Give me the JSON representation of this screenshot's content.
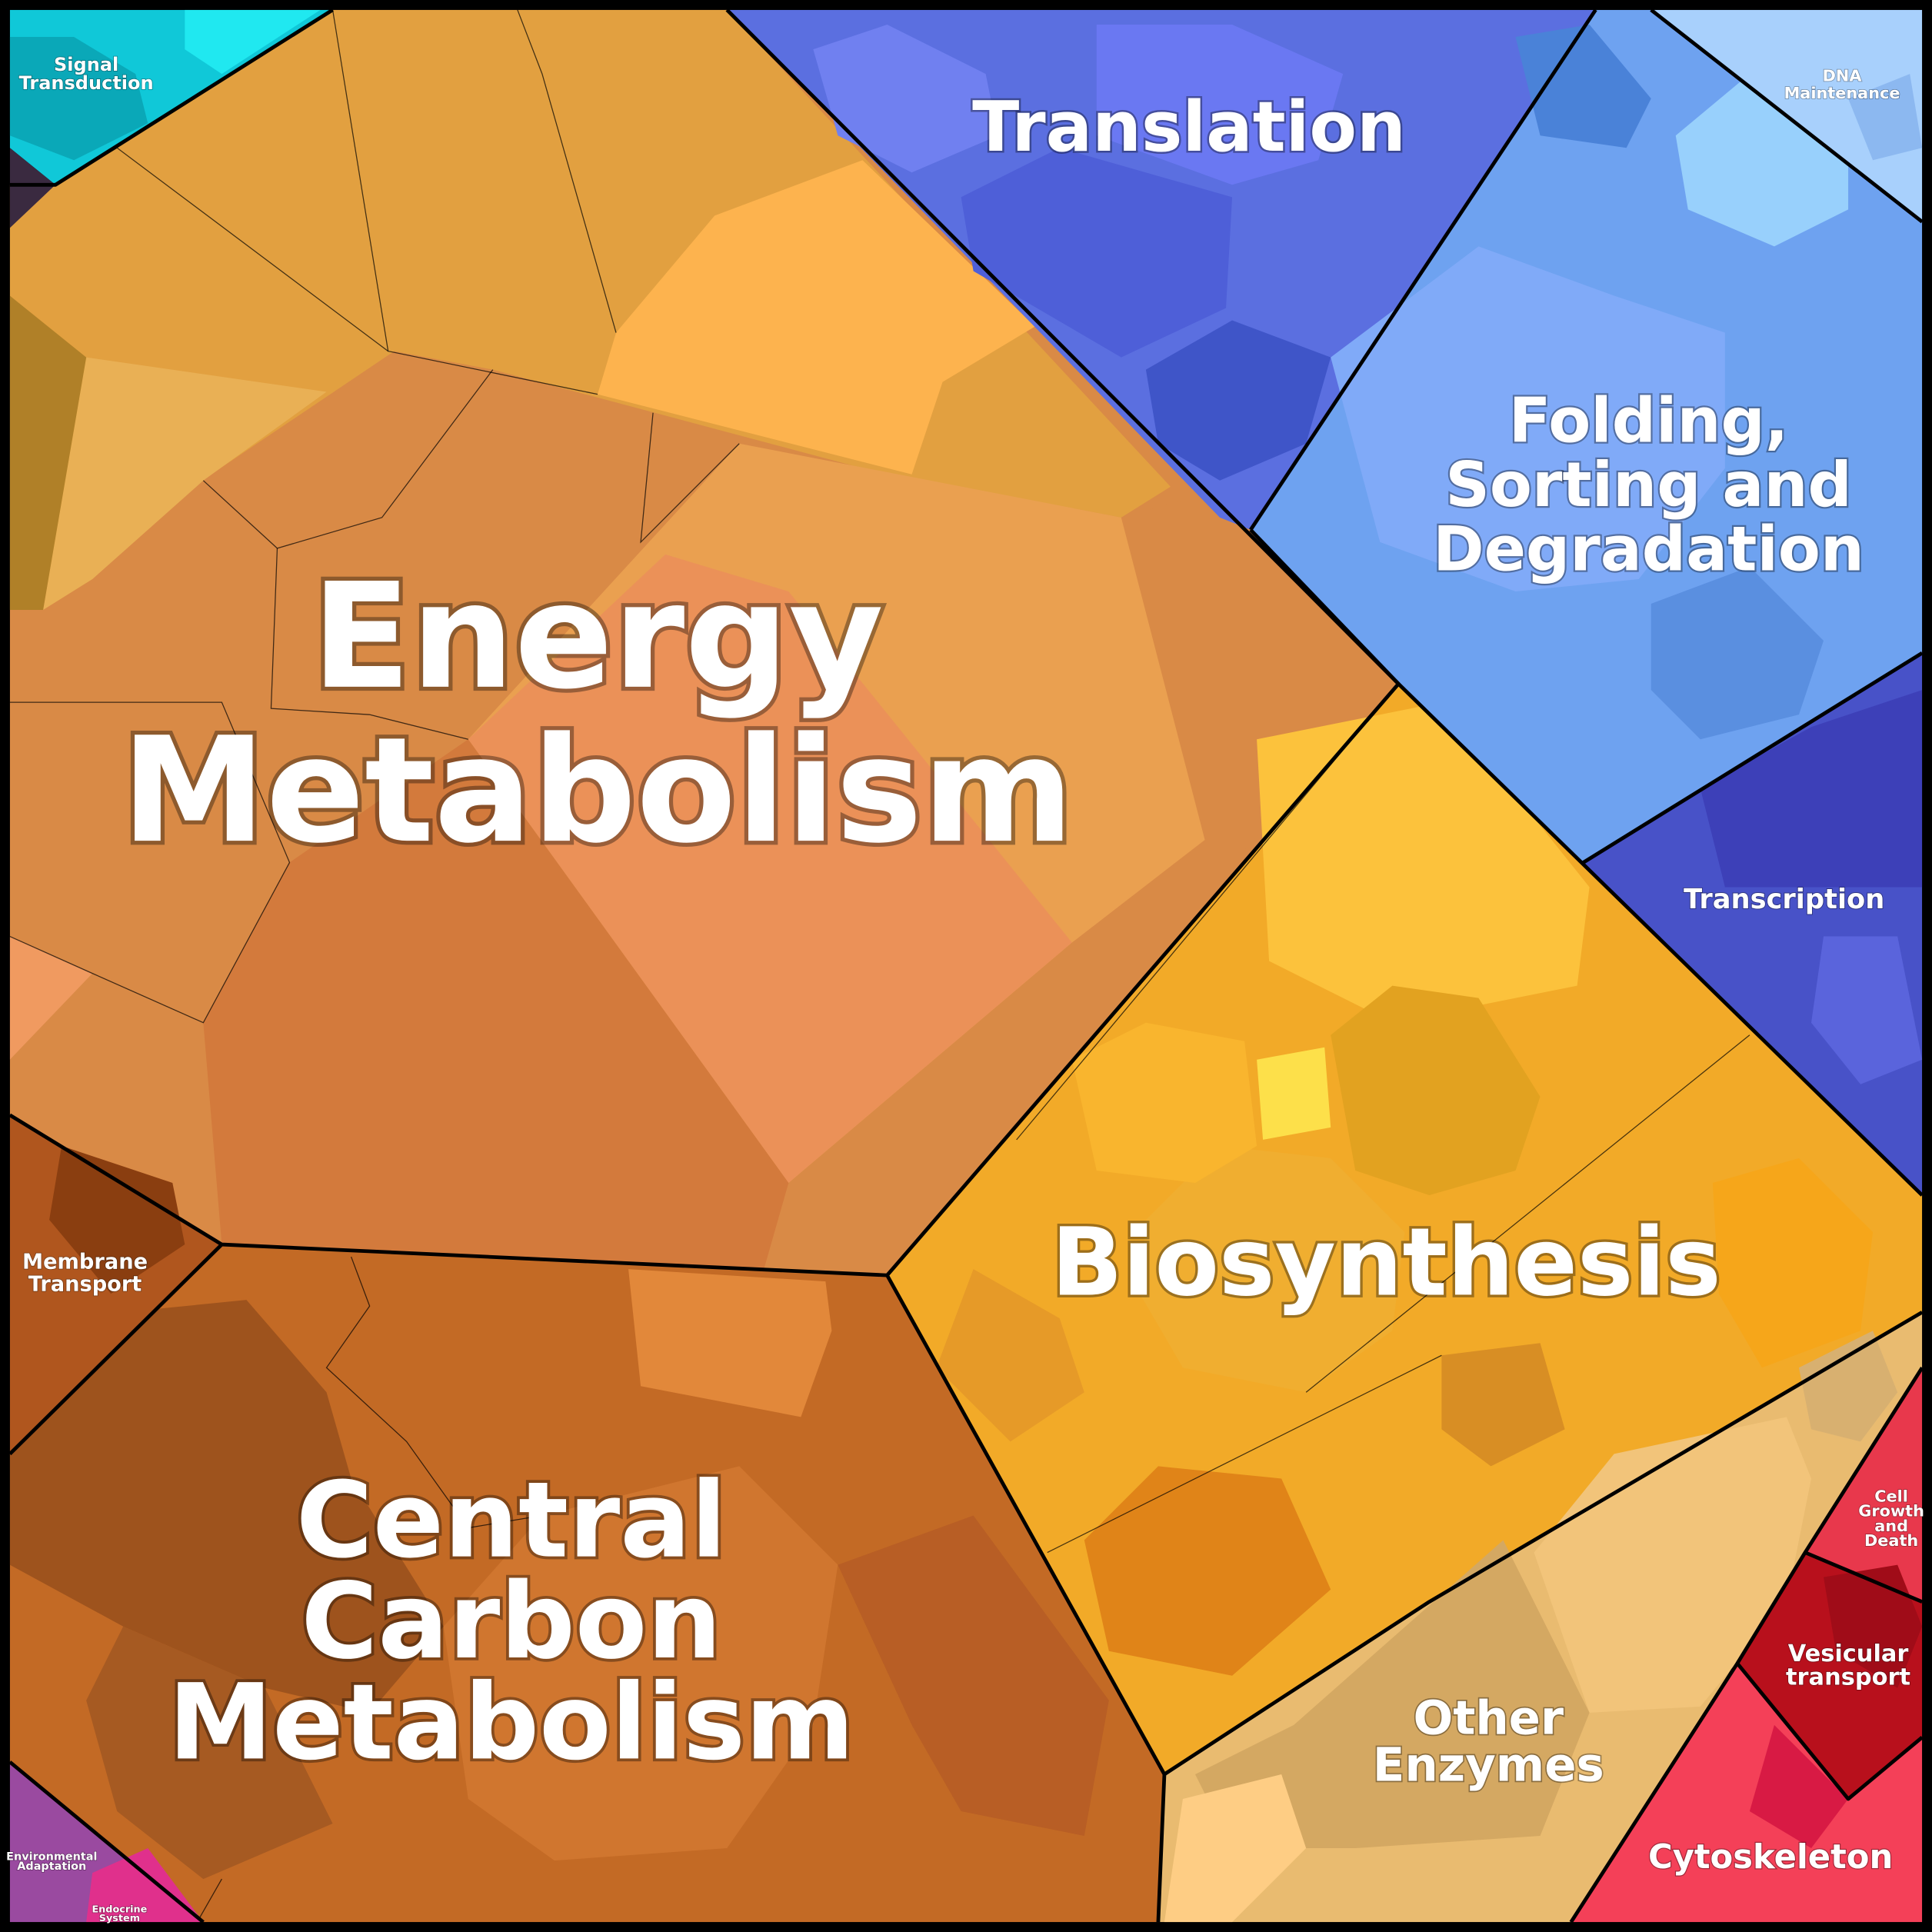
{
  "regions": [
    {
      "label": [
        "Energy",
        "Metabolism"
      ]
    },
    {
      "label": [
        "Central",
        "Carbon",
        "Metabolism"
      ]
    },
    {
      "label": [
        "Biosynthesis"
      ]
    },
    {
      "label": [
        "Other",
        "Enzymes"
      ]
    },
    {
      "label": [
        "Translation"
      ]
    },
    {
      "label": [
        "Folding,",
        "Sorting and",
        "Degradation"
      ]
    },
    {
      "label": [
        "DNA",
        "Maintenance"
      ]
    },
    {
      "label": [
        "Transcription"
      ]
    },
    {
      "label": [
        "Cell",
        "Growth",
        "and",
        "Death"
      ]
    },
    {
      "label": [
        "Vesicular",
        "transport"
      ]
    },
    {
      "label": [
        "Cytoskeleton"
      ]
    },
    {
      "label": [
        "Signal",
        "Transduction"
      ]
    },
    {
      "label": [
        "Membrane",
        "Transport"
      ]
    },
    {
      "label": [
        "Environmental",
        "Adaptation"
      ]
    },
    {
      "label": [
        "Endocrine",
        "System"
      ]
    }
  ]
}
